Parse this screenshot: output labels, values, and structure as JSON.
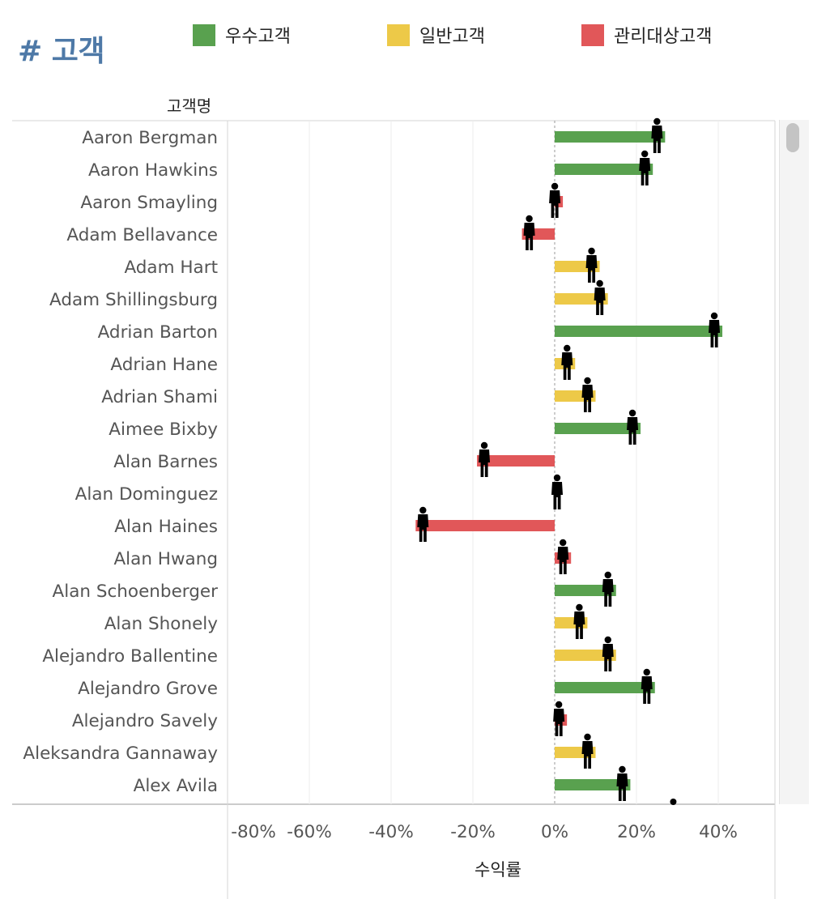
{
  "page_title": "# 고객",
  "legend": [
    {
      "label": "우수고객",
      "color": "#59a14f"
    },
    {
      "label": "일반고객",
      "color": "#edc948"
    },
    {
      "label": "관리대상고객",
      "color": "#e15759"
    }
  ],
  "chart_data": {
    "type": "bar",
    "orientation": "horizontal",
    "row_header": "고객명",
    "xlabel": "수익률",
    "xlim": [
      -0.8,
      0.5
    ],
    "x_ticks": [
      -0.8,
      -0.6,
      -0.4,
      -0.2,
      0,
      0.2,
      0.4
    ],
    "x_tick_labels": [
      "-80%",
      "-60%",
      "-40%",
      "-20%",
      "0%",
      "20%",
      "40%"
    ],
    "grid": true,
    "zero_line": "dashed",
    "marker": "person-icon",
    "legend_position": "top",
    "categories": [
      "Aaron Bergman",
      "Aaron Hawkins",
      "Aaron Smayling",
      "Adam Bellavance",
      "Adam Hart",
      "Adam Shillingsburg",
      "Adrian Barton",
      "Adrian Hane",
      "Adrian Shami",
      "Aimee Bixby",
      "Alan Barnes",
      "Alan Dominguez",
      "Alan Haines",
      "Alan Hwang",
      "Alan Schoenberger",
      "Alan Shonely",
      "Alejandro Ballentine",
      "Alejandro Grove",
      "Alejandro Savely",
      "Aleksandra Gannaway",
      "Alex Avila"
    ],
    "values": [
      0.27,
      0.24,
      0.02,
      -0.08,
      0.11,
      0.13,
      0.41,
      0.05,
      0.1,
      0.21,
      -0.19,
      0.0,
      -0.34,
      0.04,
      0.15,
      0.08,
      0.15,
      0.245,
      0.03,
      0.1,
      0.185
    ],
    "segment": [
      "우수고객",
      "우수고객",
      "관리대상고객",
      "관리대상고객",
      "일반고객",
      "일반고객",
      "우수고객",
      "일반고객",
      "일반고객",
      "우수고객",
      "관리대상고객",
      "관리대상고객",
      "관리대상고객",
      "관리대상고객",
      "우수고객",
      "일반고객",
      "일반고객",
      "우수고객",
      "관리대상고객",
      "일반고객",
      "우수고객"
    ]
  }
}
